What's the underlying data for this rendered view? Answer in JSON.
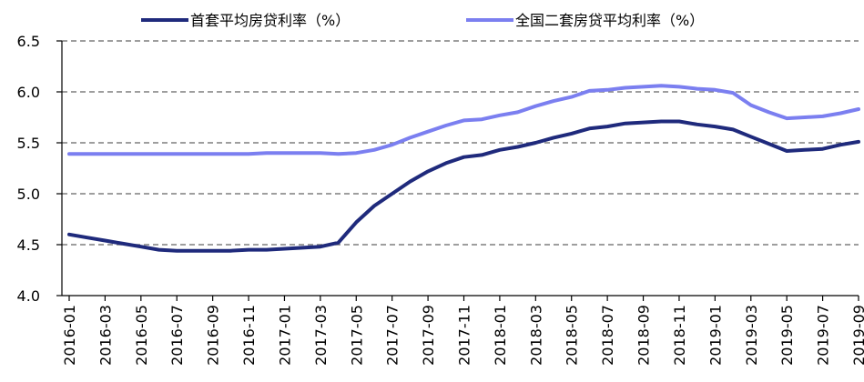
{
  "chart_data": {
    "type": "line",
    "title": "",
    "xlabel": "",
    "ylabel": "",
    "ylim": [
      4.0,
      6.5
    ],
    "yticks": [
      "4.0",
      "4.5",
      "5.0",
      "5.5",
      "6.0",
      "6.5"
    ],
    "grid": "horizontal dashed",
    "legend_position": "top",
    "x": [
      "2016-01",
      "2016-02",
      "2016-03",
      "2016-04",
      "2016-05",
      "2016-06",
      "2016-07",
      "2016-08",
      "2016-09",
      "2016-10",
      "2016-11",
      "2016-12",
      "2017-01",
      "2017-02",
      "2017-03",
      "2017-04",
      "2017-05",
      "2017-06",
      "2017-07",
      "2017-08",
      "2017-09",
      "2017-10",
      "2017-11",
      "2017-12",
      "2018-01",
      "2018-02",
      "2018-03",
      "2018-04",
      "2018-05",
      "2018-06",
      "2018-07",
      "2018-08",
      "2018-09",
      "2018-10",
      "2018-11",
      "2018-12",
      "2019-01",
      "2019-02",
      "2019-03",
      "2019-04",
      "2019-05",
      "2019-06",
      "2019-07",
      "2019-08",
      "2019-09"
    ],
    "xticks": [
      "2016-01",
      "2016-03",
      "2016-05",
      "2016-07",
      "2016-09",
      "2016-11",
      "2017-01",
      "2017-03",
      "2017-05",
      "2017-07",
      "2017-09",
      "2017-11",
      "2018-01",
      "2018-03",
      "2018-05",
      "2018-07",
      "2018-09",
      "2018-11",
      "2019-01",
      "2019-03",
      "2019-05",
      "2019-07",
      "2019-09"
    ],
    "series": [
      {
        "name": "首套平均房贷利率（%）",
        "color": "#1f2a7c",
        "values": [
          4.6,
          4.57,
          4.54,
          4.51,
          4.48,
          4.45,
          4.44,
          4.44,
          4.44,
          4.44,
          4.45,
          4.45,
          4.46,
          4.47,
          4.48,
          4.52,
          4.72,
          4.88,
          5.0,
          5.12,
          5.22,
          5.3,
          5.36,
          5.38,
          5.43,
          5.46,
          5.5,
          5.55,
          5.59,
          5.64,
          5.66,
          5.69,
          5.7,
          5.71,
          5.71,
          5.68,
          5.66,
          5.63,
          5.56,
          5.49,
          5.42,
          5.43,
          5.44,
          5.48,
          5.51
        ]
      },
      {
        "name": "全国二套房贷平均利率（%）",
        "color": "#7b7ff0",
        "values": [
          5.39,
          5.39,
          5.39,
          5.39,
          5.39,
          5.39,
          5.39,
          5.39,
          5.39,
          5.39,
          5.39,
          5.4,
          5.4,
          5.4,
          5.4,
          5.39,
          5.4,
          5.43,
          5.48,
          5.55,
          5.61,
          5.67,
          5.72,
          5.73,
          5.77,
          5.8,
          5.86,
          5.91,
          5.95,
          6.01,
          6.02,
          6.04,
          6.05,
          6.06,
          6.05,
          6.03,
          6.02,
          5.99,
          5.87,
          5.8,
          5.74,
          5.75,
          5.76,
          5.79,
          5.83
        ]
      }
    ]
  }
}
